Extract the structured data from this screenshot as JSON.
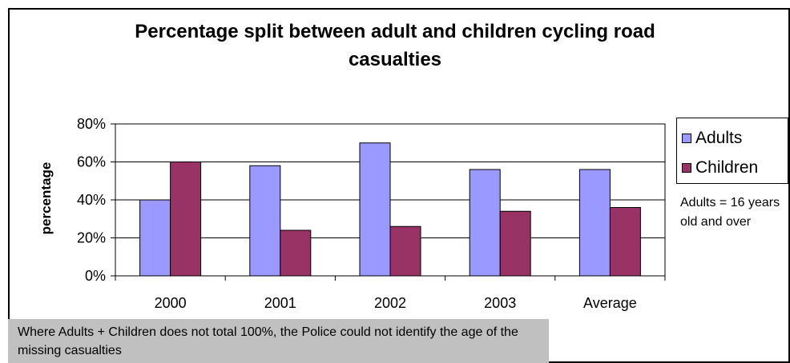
{
  "chart_data": {
    "type": "bar",
    "title_lines": [
      "Percentage split between adult and children cycling road",
      "casualties"
    ],
    "xlabel": "",
    "ylabel": "percentage",
    "categories": [
      "2000",
      "2001",
      "2002",
      "2003",
      "Average"
    ],
    "series": [
      {
        "name": "Adults",
        "color": "#9999ff",
        "values": [
          40,
          58,
          70,
          56,
          56
        ]
      },
      {
        "name": "Children",
        "color": "#993366",
        "values": [
          60,
          24,
          26,
          34,
          36
        ]
      }
    ],
    "ylim": [
      0,
      80
    ],
    "yticks": [
      0,
      20,
      40,
      60,
      80
    ],
    "ytick_labels": [
      "0%",
      "20%",
      "40%",
      "60%",
      "80%"
    ],
    "grid": true,
    "legend_position": "right",
    "side_note": "Adults = 16 years old and over",
    "footnote": "Where Adults + Children does not total 100%, the Police could not identify the age of the missing casualties"
  }
}
